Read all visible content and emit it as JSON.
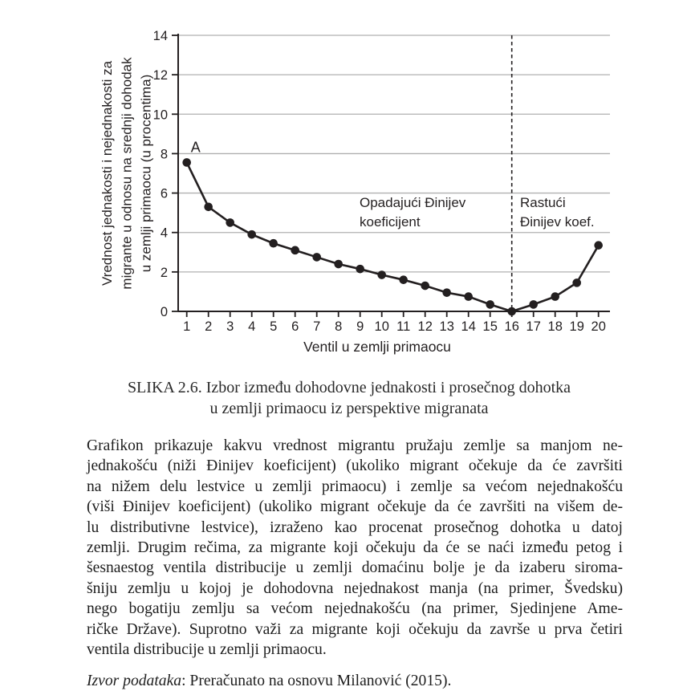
{
  "chart_data": {
    "type": "line",
    "x": [
      1,
      2,
      3,
      4,
      5,
      6,
      7,
      8,
      9,
      10,
      11,
      12,
      13,
      14,
      15,
      16,
      17,
      18,
      19,
      20
    ],
    "values": [
      7.55,
      5.3,
      4.5,
      3.9,
      3.45,
      3.1,
      2.75,
      2.4,
      2.15,
      1.85,
      1.6,
      1.3,
      0.95,
      0.75,
      0.35,
      0,
      0.35,
      0.75,
      1.45,
      3.35
    ],
    "xlabel": "Ventil u zemlji primaocu",
    "ylabel_lines": [
      "Vrednost jednakosti i nejednakosti za",
      "migrante u odnosu na srednji dohodak",
      "u zemlji primaocu (u procentima)"
    ],
    "ylim": [
      0,
      14
    ],
    "yticks": [
      0,
      2,
      4,
      6,
      8,
      10,
      12,
      14
    ],
    "grid": "horizontal",
    "legend": "none",
    "marker": "filled-circle",
    "line_color": "#231f20",
    "grid_color": "#b0b0b0",
    "dashed_vline_x": 16,
    "point_annotation": {
      "text": "A",
      "x": 1
    },
    "region_annotations": {
      "left_lines": [
        "Opadajući Đinijev",
        "koeficijent"
      ],
      "right_lines": [
        "Rastući",
        "Đinijev koef."
      ]
    }
  },
  "caption": {
    "lines": [
      "SLIKA 2.6. Izbor između dohodovne jednakosti i prosečnog dohotka",
      "u zemlji primaocu iz perspektive migranata"
    ]
  },
  "body": {
    "lines": [
      "Grafikon prikazuje kakvu vrednost migrantu pružaju zemlje sa manjom ne-",
      "jednakošću (niži Đinijev koeficijent) (ukoliko migrant očekuje da će završiti",
      "na nižem delu lestvice u zemlji primaocu) i zemlje sa većom nejednakošću",
      "(viši Đinijev koeficijent) (ukoliko migrant očekuje da će završiti na višem de-",
      "lu distributivne lestvice), izraženo kao procenat prosečnog dohotka u datoj",
      "zemlji. Drugim rečima, za migrante koji očekuju da će se naći između petog i",
      "šesnaestog ventila distribucije u zemlji domaćinu bolje je da izaberu siroma-",
      "šniju zemlju u kojoj je dohodovna nejednakost manja (na primer, Švedsku)",
      "nego bogatiju zemlju sa većom nejednakošću (na primer, Sjedinjene Ame-",
      "ričke Države). Suprotno važi za migrante koji očekuju da završe u prva četiri",
      "ventila distribucije u zemlji primaocu."
    ]
  },
  "source": {
    "italic": "Izvor podataka",
    "rest": ": Preračunato na osnovu Milanović (2015)."
  }
}
